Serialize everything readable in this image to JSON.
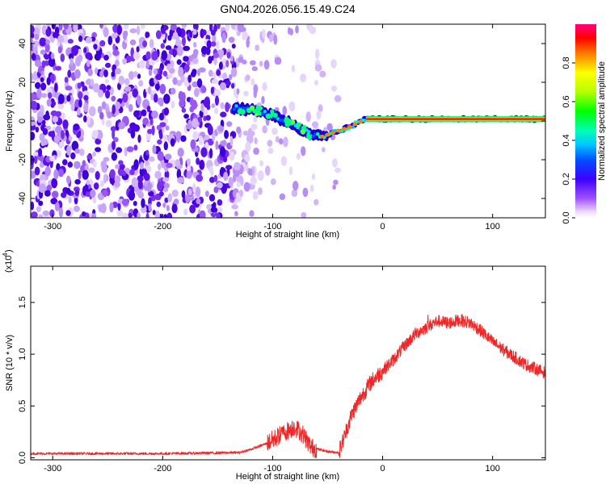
{
  "title": "GN04.2026.056.15.49.C24",
  "chart_data": [
    {
      "type": "heatmap",
      "xlabel": "Height of straight line (km)",
      "ylabel": "Frequency (Hz)",
      "xlim": [
        -320,
        148
      ],
      "ylim": [
        -50,
        50
      ],
      "xticks": [
        -300,
        -200,
        -100,
        0,
        100
      ],
      "yticks": [
        -40,
        -20,
        0,
        20,
        40
      ],
      "colorbar": {
        "label": "Normalized spectral amplitude",
        "range": [
          0,
          1
        ],
        "ticks": [
          0.0,
          0.2,
          0.4,
          0.6,
          0.8
        ]
      },
      "ridge": {
        "x": [
          -135,
          -120,
          -100,
          -80,
          -65,
          -55,
          -45,
          -30,
          -15,
          0,
          50,
          100,
          148
        ],
        "y": [
          7,
          6,
          3,
          -2,
          -7,
          -8,
          -6,
          -3,
          1,
          1,
          1,
          1,
          1
        ]
      }
    },
    {
      "type": "line",
      "xlabel": "Height of straight line (km)",
      "ylabel": "SNR (10 * v/v)",
      "multiplier": "(x10",
      "multiplier_exp": "4",
      "xlim": [
        -320,
        148
      ],
      "ylim": [
        -0.02,
        1.85
      ],
      "xticks": [
        -300,
        -200,
        -100,
        0,
        100
      ],
      "yticks": [
        0.0,
        0.5,
        1.0,
        1.5
      ],
      "series": [
        {
          "x": [
            -320,
            -200,
            -130,
            -120,
            -105,
            -90,
            -80,
            -72,
            -65,
            -50,
            -40,
            -35,
            -28,
            -20,
            -10,
            0,
            10,
            20,
            30,
            40,
            50,
            60,
            70,
            80,
            90,
            100,
            110,
            120,
            130,
            148
          ],
          "y": [
            0.04,
            0.04,
            0.05,
            0.08,
            0.14,
            0.24,
            0.3,
            0.22,
            0.1,
            0.06,
            0.05,
            0.2,
            0.42,
            0.58,
            0.74,
            0.84,
            0.95,
            1.08,
            1.2,
            1.26,
            1.32,
            1.3,
            1.33,
            1.3,
            1.22,
            1.12,
            1.04,
            0.97,
            0.9,
            0.82
          ]
        }
      ]
    }
  ]
}
